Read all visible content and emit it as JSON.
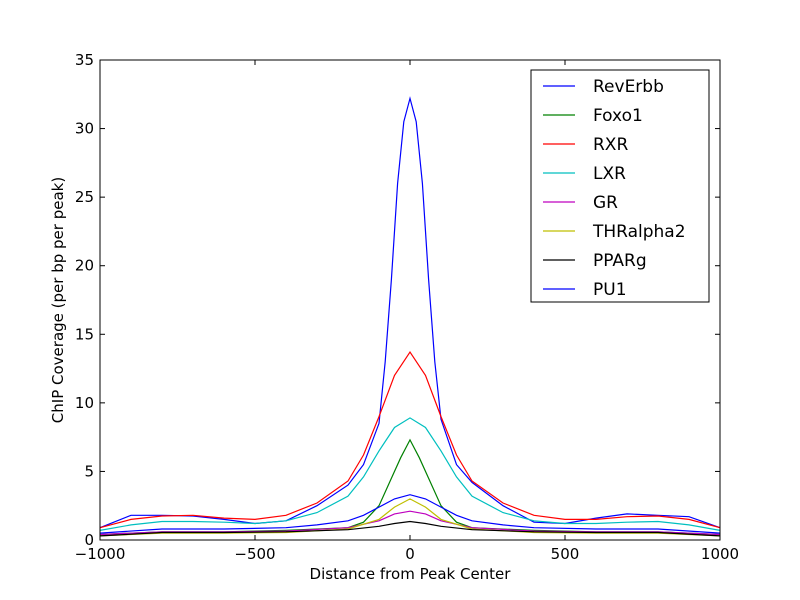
{
  "chart_data": {
    "type": "line",
    "title": "",
    "xlabel": "Distance from Peak Center",
    "ylabel": "ChIP Coverage (per bp per peak)",
    "xlim": [
      -1000,
      1000
    ],
    "ylim": [
      0,
      35
    ],
    "xticks": [
      -1000,
      -500,
      0,
      500,
      1000
    ],
    "xtick_labels": [
      "−1000",
      "−500",
      "0",
      "500",
      "1000"
    ],
    "yticks": [
      0,
      5,
      10,
      15,
      20,
      25,
      30,
      35
    ],
    "ytick_labels": [
      "0",
      "5",
      "10",
      "15",
      "20",
      "25",
      "30",
      "35"
    ],
    "grid": false,
    "legend_position": "top-right",
    "series": [
      {
        "name": "RevErbb",
        "color": "#0000ff",
        "x": [
          -1000,
          -900,
          -800,
          -700,
          -600,
          -500,
          -400,
          -300,
          -200,
          -150,
          -100,
          -80,
          -60,
          -40,
          -20,
          0,
          20,
          40,
          60,
          80,
          100,
          150,
          200,
          300,
          400,
          500,
          600,
          700,
          800,
          900,
          1000
        ],
        "y": [
          0.9,
          1.8,
          1.8,
          1.75,
          1.5,
          1.2,
          1.4,
          2.5,
          4.0,
          5.5,
          8.5,
          13.0,
          19.0,
          26.0,
          30.5,
          32.2,
          30.5,
          26.0,
          19.0,
          13.0,
          8.8,
          5.5,
          4.2,
          2.5,
          1.3,
          1.2,
          1.6,
          1.9,
          1.8,
          1.7,
          0.9
        ]
      },
      {
        "name": "Foxo1",
        "color": "#008000",
        "x": [
          -1000,
          -800,
          -600,
          -400,
          -200,
          -150,
          -100,
          -60,
          -30,
          0,
          30,
          60,
          100,
          150,
          200,
          400,
          600,
          800,
          1000
        ],
        "y": [
          0.4,
          0.6,
          0.6,
          0.7,
          0.9,
          1.3,
          2.5,
          4.5,
          6.0,
          7.3,
          6.0,
          4.5,
          2.5,
          1.3,
          0.9,
          0.7,
          0.6,
          0.6,
          0.4
        ]
      },
      {
        "name": "RXR",
        "color": "#ff0000",
        "x": [
          -1000,
          -900,
          -800,
          -700,
          -600,
          -500,
          -400,
          -300,
          -200,
          -150,
          -100,
          -50,
          0,
          50,
          100,
          150,
          200,
          300,
          400,
          500,
          600,
          700,
          800,
          900,
          1000
        ],
        "y": [
          0.9,
          1.5,
          1.75,
          1.8,
          1.6,
          1.5,
          1.8,
          2.7,
          4.3,
          6.2,
          9.0,
          12.0,
          13.7,
          12.0,
          9.0,
          6.2,
          4.3,
          2.7,
          1.8,
          1.5,
          1.5,
          1.7,
          1.75,
          1.5,
          0.9
        ]
      },
      {
        "name": "LXR",
        "color": "#00bfbf",
        "x": [
          -1000,
          -900,
          -800,
          -700,
          -600,
          -500,
          -400,
          -300,
          -200,
          -150,
          -100,
          -50,
          0,
          50,
          100,
          150,
          200,
          300,
          400,
          500,
          600,
          700,
          800,
          900,
          1000
        ],
        "y": [
          0.7,
          1.1,
          1.35,
          1.35,
          1.3,
          1.2,
          1.4,
          2.0,
          3.2,
          4.6,
          6.5,
          8.2,
          8.9,
          8.2,
          6.5,
          4.6,
          3.2,
          2.0,
          1.4,
          1.2,
          1.2,
          1.3,
          1.35,
          1.1,
          0.7
        ]
      },
      {
        "name": "GR",
        "color": "#bf00bf",
        "x": [
          -1000,
          -800,
          -600,
          -400,
          -200,
          -100,
          -50,
          0,
          50,
          100,
          200,
          400,
          600,
          800,
          1000
        ],
        "y": [
          0.4,
          0.6,
          0.6,
          0.65,
          0.9,
          1.4,
          1.9,
          2.1,
          1.9,
          1.4,
          0.9,
          0.65,
          0.6,
          0.6,
          0.4
        ]
      },
      {
        "name": "THRalpha2",
        "color": "#bfbf00",
        "x": [
          -1000,
          -800,
          -600,
          -400,
          -200,
          -100,
          -50,
          0,
          50,
          100,
          200,
          400,
          600,
          800,
          1000
        ],
        "y": [
          0.3,
          0.5,
          0.5,
          0.55,
          0.8,
          1.5,
          2.4,
          3.0,
          2.4,
          1.5,
          0.8,
          0.55,
          0.5,
          0.5,
          0.3
        ]
      },
      {
        "name": "PPARg",
        "color": "#000000",
        "x": [
          -1000,
          -800,
          -600,
          -400,
          -200,
          -100,
          -50,
          0,
          50,
          100,
          200,
          400,
          600,
          800,
          1000
        ],
        "y": [
          0.3,
          0.55,
          0.55,
          0.6,
          0.75,
          1.0,
          1.2,
          1.35,
          1.2,
          1.0,
          0.75,
          0.6,
          0.55,
          0.55,
          0.3
        ]
      },
      {
        "name": "PU1",
        "color": "#0000ff",
        "x": [
          -1000,
          -800,
          -600,
          -400,
          -300,
          -200,
          -150,
          -100,
          -50,
          0,
          50,
          100,
          150,
          200,
          300,
          400,
          600,
          800,
          1000
        ],
        "y": [
          0.5,
          0.8,
          0.8,
          0.9,
          1.1,
          1.4,
          1.8,
          2.4,
          3.0,
          3.3,
          3.0,
          2.4,
          1.8,
          1.4,
          1.1,
          0.9,
          0.8,
          0.8,
          0.5
        ]
      }
    ]
  }
}
